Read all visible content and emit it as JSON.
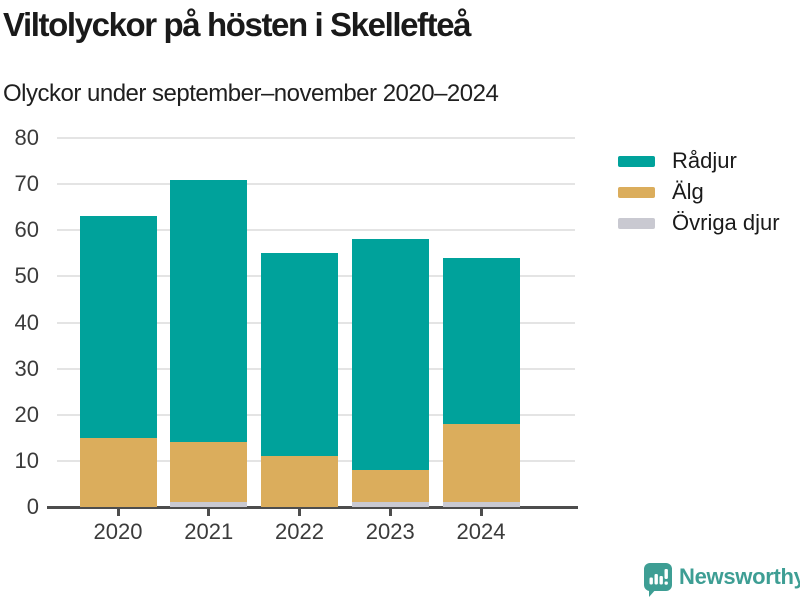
{
  "header": {
    "title": "Viltolyckor på hösten i Skellefteå",
    "subtitle": "Olyckor under september–november 2020–2024"
  },
  "chart_data": {
    "type": "bar",
    "stacked": true,
    "title": "Viltolyckor på hösten i Skellefteå",
    "subtitle": "Olyckor under september–november 2020–2024",
    "categories": [
      "2020",
      "2021",
      "2022",
      "2023",
      "2024"
    ],
    "series": [
      {
        "name": "Rådjur",
        "color": "#00a29b",
        "values": [
          48,
          57,
          44,
          50,
          36
        ]
      },
      {
        "name": "Älg",
        "color": "#dbad5c",
        "values": [
          15,
          13,
          11,
          7,
          17
        ]
      },
      {
        "name": "Övriga djur",
        "color": "#c9c9d1",
        "values": [
          0,
          1,
          0,
          1,
          1
        ]
      }
    ],
    "stack_order_bottom_to_top": [
      "Övriga djur",
      "Älg",
      "Rådjur"
    ],
    "stack_totals": [
      63,
      71,
      55,
      58,
      54
    ],
    "xlabel": "",
    "ylabel": "",
    "ylim": [
      0,
      80
    ],
    "yticks": [
      0,
      10,
      20,
      30,
      40,
      50,
      60,
      70,
      80
    ],
    "grid": "horizontal",
    "legend_position": "right",
    "colors": {
      "gridline": "#e4e4e4",
      "axis": "#4d4d4d",
      "text": "#3b3b3b"
    }
  },
  "footer": {
    "brand": "Newsworthy",
    "brand_color": "#3e9e94"
  }
}
